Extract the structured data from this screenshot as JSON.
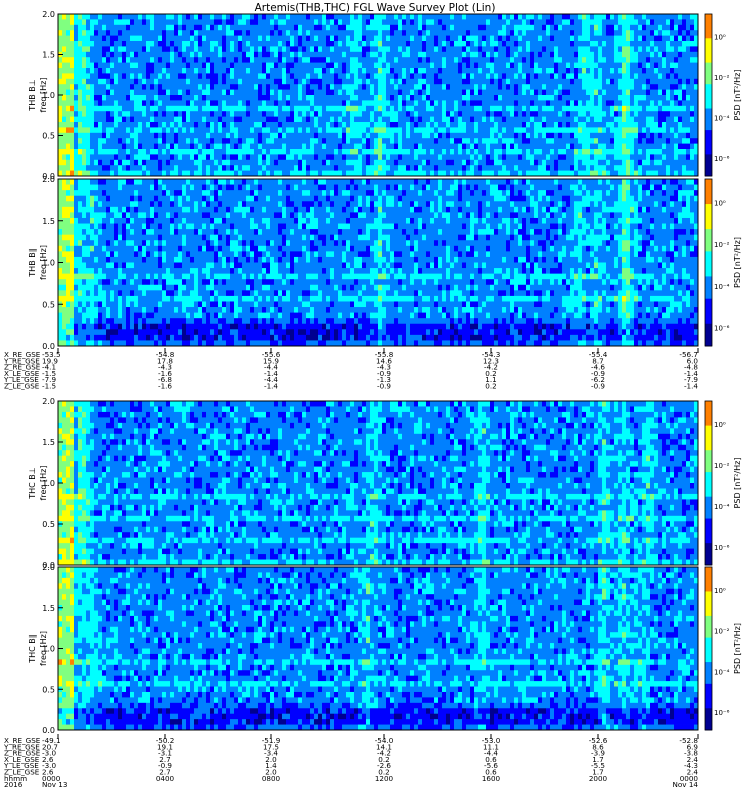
{
  "title": "Artemis(THB,THC) FGL Wave Survey Plot (Lin)",
  "chart_data": [
    {
      "type": "heatmap",
      "title": "",
      "ylabel": "THB B⊥ freq [Hz]",
      "colorbar_label": "PSD [nT²/Hz]",
      "ylim": [
        0,
        2
      ],
      "yticks": [
        "0.0",
        "0.5",
        "1.0",
        "1.5",
        "2.0"
      ],
      "colorbar_ticks": [
        "10⁰",
        "10⁻²",
        "10⁻⁴",
        "10⁻⁶"
      ],
      "colorscale": [
        "#000090",
        "#0000ff",
        "#0080ff",
        "#00ffff",
        "#80ff80",
        "#ffff00",
        "#ff8000",
        "#ff0000"
      ],
      "scale": "log"
    },
    {
      "type": "heatmap",
      "title": "",
      "ylabel": "THB B∥ freq [Hz]",
      "colorbar_label": "PSD [nT²/Hz]",
      "ylim": [
        0,
        2
      ],
      "yticks": [
        "0.0",
        "0.5",
        "1.0",
        "1.5",
        "2.0"
      ],
      "colorbar_ticks": [
        "10⁰",
        "10⁻²",
        "10⁻⁴",
        "10⁻⁶"
      ],
      "colorscale": [
        "#000090",
        "#0000ff",
        "#0080ff",
        "#00ffff",
        "#80ff80",
        "#ffff00",
        "#ff8000",
        "#ff0000"
      ],
      "scale": "log"
    },
    {
      "type": "heatmap",
      "title": "",
      "ylabel": "THC B⊥ freq [Hz]",
      "colorbar_label": "PSD [nT²/Hz]",
      "ylim": [
        0,
        2
      ],
      "yticks": [
        "0.0",
        "0.5",
        "1.0",
        "1.5",
        "2.0"
      ],
      "colorbar_ticks": [
        "10⁰",
        "10⁻²",
        "10⁻⁴",
        "10⁻⁶"
      ],
      "colorscale": [
        "#000090",
        "#0000ff",
        "#0080ff",
        "#00ffff",
        "#80ff80",
        "#ffff00",
        "#ff8000",
        "#ff0000"
      ],
      "scale": "log"
    },
    {
      "type": "heatmap",
      "title": "",
      "ylabel": "THC B∥ freq [Hz]",
      "colorbar_label": "PSD [nT²/Hz]",
      "ylim": [
        0,
        2
      ],
      "yticks": [
        "0.0",
        "0.5",
        "1.0",
        "1.5",
        "2.0"
      ],
      "colorbar_ticks": [
        "10⁰",
        "10⁻²",
        "10⁻⁴",
        "10⁻⁶"
      ],
      "colorscale": [
        "#000090",
        "#0000ff",
        "#0080ff",
        "#00ffff",
        "#80ff80",
        "#ffff00",
        "#ff8000",
        "#ff0000"
      ],
      "scale": "log"
    }
  ],
  "tables": {
    "thb": {
      "rows": [
        {
          "label": "X_RE_GSE",
          "values": [
            "-53.5",
            "-54.8",
            "-55.6",
            "-55.8",
            "-54.3",
            "-55.4",
            "-56.7"
          ]
        },
        {
          "label": "Y_RE_GSE",
          "values": [
            "19.9",
            "17.8",
            "15.9",
            "14.6",
            "12.3",
            "8.7",
            "6.0"
          ]
        },
        {
          "label": "Z_RE_GSE",
          "values": [
            "-4.1",
            "-4.3",
            "-4.4",
            "-4.3",
            "-4.2",
            "-4.6",
            "-4.8"
          ]
        },
        {
          "label": "X_LE_GSE",
          "values": [
            "-1.5",
            "-1.6",
            "-1.4",
            "-0.9",
            "0.2",
            "-0.9",
            "-1.4"
          ]
        },
        {
          "label": "Y_LE_GSE",
          "values": [
            "-7.9",
            "-6.8",
            "-4.4",
            "-1.3",
            "1.1",
            "-6.2",
            "-7.9"
          ]
        },
        {
          "label": "Z_LE_GSE",
          "values": [
            "-1.5",
            "-1.6",
            "-1.4",
            "-0.9",
            "0.2",
            "-0.9",
            "-1.4"
          ]
        }
      ]
    },
    "thc": {
      "rows": [
        {
          "label": "X_RE_GSE",
          "values": [
            "-49.1",
            "-50.2",
            "-51.9",
            "-54.0",
            "-53.0",
            "-52.6",
            "-52.8"
          ]
        },
        {
          "label": "Y_RE_GSE",
          "values": [
            "20.7",
            "19.1",
            "17.5",
            "14.1",
            "11.1",
            "8.6",
            "6.9"
          ]
        },
        {
          "label": "Z_RE_GSE",
          "values": [
            "-3.0",
            "-3.1",
            "-3.4",
            "-4.2",
            "-4.4",
            "-3.9",
            "-3.8"
          ]
        },
        {
          "label": "X_LE_GSE",
          "values": [
            "2.6",
            "2.7",
            "2.0",
            "0.2",
            "0.6",
            "1.7",
            "2.4"
          ]
        },
        {
          "label": "Y_LE_GSE",
          "values": [
            "-3.0",
            "-0.9",
            "1.4",
            "-2.6",
            "-5.6",
            "-5.5",
            "-4.3"
          ]
        },
        {
          "label": "Z_LE_GSE",
          "values": [
            "2.6",
            "2.7",
            "2.0",
            "0.2",
            "0.6",
            "1.7",
            "2.4"
          ]
        },
        {
          "label": "hhmm",
          "values": [
            "0000",
            "0400",
            "0800",
            "1200",
            "1600",
            "2000",
            "0000"
          ]
        },
        {
          "label": "2016",
          "values": [
            "Nov 13",
            "",
            "",
            "",
            "",
            "",
            "Nov 14"
          ]
        }
      ]
    }
  }
}
